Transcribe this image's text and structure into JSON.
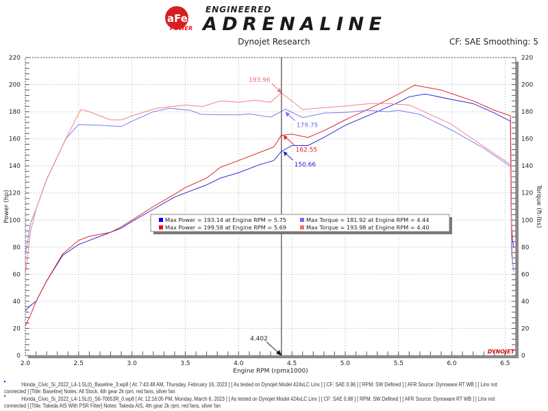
{
  "header": {
    "logo_text": "aFe POWER ENGINEERED ADRENALINE",
    "subtitle": "Dynojet Research",
    "cf_label": "CF: SAE Smoothing: 5"
  },
  "footer": {
    "run1_line1": "Honda_Civic_Si_2022_L4-1.5L(t)_Baseline_3.wp8 [ At: 7:43:48 AM, Thursday, February 16, 2023 ] [ As tested on Dynojet Model 424xLC Linx ] [ CF: SAE 0.96 ] [ RPM: SW Defined ] [ AFR Source: Dynoware RT WB ] [ Linx not",
    "run1_line2": "connected ] [Title: Baseline]  Notes: All Stock, 4th gear 2k rpm, red fans, silver fan",
    "run2_line1": "Honda_Civic_Si_2022_L4-1.5L(t)_S6-70053R_0.wp8 [ At: 12:16:05 PM, Monday, March 6, 2023 ] [ As tested on Dynojet Model 424xLC Linx ] [ CF: SAE 0.98 ] [ RPM: SW Defined ] [ AFR Source: Dynoware RT WB ] [ Linx not",
    "run2_line2": "connected ] [Title: Takeda AIS With PSR Filter]  Notes: Takeda AIS, 4th gear 2k rpm, red fans, silver fan",
    "run1_color": "#0000ff",
    "run2_color": "#ff0000"
  },
  "chart_data": {
    "type": "line",
    "xlabel": "Engine RPM (rpmx1000)",
    "ylabel": "Power (hp)",
    "y2label": "Torque (ft-lbs)",
    "xlim": [
      2.0,
      6.6
    ],
    "ylim": [
      0,
      220
    ],
    "y2lim": [
      0,
      220
    ],
    "xticks": [
      "2.0",
      "2.5",
      "3.0",
      "3.5",
      "4.0",
      "4.5",
      "5.0",
      "5.5",
      "6.0",
      "6.5"
    ],
    "yticks": [
      "0",
      "20",
      "40",
      "60",
      "80",
      "100",
      "120",
      "140",
      "160",
      "180",
      "200",
      "220"
    ],
    "grid": true,
    "watermark": "DYNOJET",
    "cursor": {
      "x": 4.402,
      "label": "4.402"
    },
    "series": [
      {
        "key": "blue_power",
        "color": "#2a2ad6",
        "axis": "left",
        "points": [
          [
            2.0,
            33
          ],
          [
            2.05,
            37
          ],
          [
            2.1,
            40
          ],
          [
            2.2,
            55
          ],
          [
            2.35,
            74
          ],
          [
            2.5,
            82
          ],
          [
            2.7,
            88
          ],
          [
            2.9,
            94
          ],
          [
            3.0,
            99
          ],
          [
            3.2,
            108
          ],
          [
            3.4,
            117
          ],
          [
            3.5,
            120
          ],
          [
            3.7,
            126
          ],
          [
            3.83,
            131
          ],
          [
            4.0,
            135
          ],
          [
            4.2,
            141
          ],
          [
            4.33,
            144
          ],
          [
            4.4,
            150.66
          ],
          [
            4.5,
            155
          ],
          [
            4.65,
            155
          ],
          [
            4.8,
            161
          ],
          [
            5.0,
            170
          ],
          [
            5.3,
            180
          ],
          [
            5.5,
            187
          ],
          [
            5.6,
            191
          ],
          [
            5.75,
            193.1
          ],
          [
            6.0,
            189
          ],
          [
            6.2,
            186
          ],
          [
            6.4,
            179
          ],
          [
            6.55,
            173
          ],
          [
            6.56,
            90
          ],
          [
            6.58,
            80
          ]
        ]
      },
      {
        "key": "red_power",
        "color": "#e02424",
        "axis": "left",
        "points": [
          [
            2.0,
            22
          ],
          [
            2.05,
            30
          ],
          [
            2.1,
            40
          ],
          [
            2.2,
            55
          ],
          [
            2.35,
            75
          ],
          [
            2.5,
            85
          ],
          [
            2.6,
            88
          ],
          [
            2.8,
            91
          ],
          [
            2.9,
            95
          ],
          [
            3.0,
            100
          ],
          [
            3.2,
            110
          ],
          [
            3.4,
            119
          ],
          [
            3.5,
            124
          ],
          [
            3.7,
            131
          ],
          [
            3.83,
            139
          ],
          [
            4.0,
            144
          ],
          [
            4.2,
            150
          ],
          [
            4.33,
            154
          ],
          [
            4.4,
            162.55
          ],
          [
            4.5,
            163.5
          ],
          [
            4.65,
            161
          ],
          [
            4.8,
            166
          ],
          [
            5.0,
            174
          ],
          [
            5.3,
            185
          ],
          [
            5.5,
            193
          ],
          [
            5.65,
            199.6
          ],
          [
            5.9,
            196
          ],
          [
            6.2,
            188
          ],
          [
            6.4,
            181
          ],
          [
            6.55,
            177
          ],
          [
            6.56,
            95
          ],
          [
            6.57,
            87
          ]
        ]
      },
      {
        "key": "blue_torque",
        "color": "#7b7bef",
        "axis": "right",
        "points": [
          [
            2.0,
            74
          ],
          [
            2.05,
            98
          ],
          [
            2.1,
            108
          ],
          [
            2.2,
            130
          ],
          [
            2.38,
            160
          ],
          [
            2.5,
            170.6
          ],
          [
            2.7,
            170
          ],
          [
            2.9,
            169
          ],
          [
            3.0,
            173
          ],
          [
            3.2,
            180
          ],
          [
            3.35,
            182.6
          ],
          [
            3.55,
            181
          ],
          [
            3.65,
            178
          ],
          [
            3.85,
            177.7
          ],
          [
            4.0,
            177.7
          ],
          [
            4.1,
            178.5
          ],
          [
            4.3,
            176
          ],
          [
            4.44,
            181.9
          ],
          [
            4.6,
            175.7
          ],
          [
            4.8,
            179
          ],
          [
            5.0,
            179.5
          ],
          [
            5.2,
            181
          ],
          [
            5.4,
            180
          ],
          [
            5.5,
            181
          ],
          [
            5.7,
            178
          ],
          [
            6.0,
            166.4
          ],
          [
            6.3,
            153
          ],
          [
            6.55,
            139.6
          ],
          [
            6.56,
            75
          ],
          [
            6.58,
            62
          ]
        ]
      },
      {
        "key": "red_torque",
        "color": "#f08282",
        "axis": "right",
        "points": [
          [
            2.0,
            60
          ],
          [
            2.05,
            92
          ],
          [
            2.1,
            108
          ],
          [
            2.2,
            130
          ],
          [
            2.38,
            160
          ],
          [
            2.52,
            181.6
          ],
          [
            2.6,
            180
          ],
          [
            2.8,
            174
          ],
          [
            2.9,
            174
          ],
          [
            3.0,
            177
          ],
          [
            3.23,
            182.6
          ],
          [
            3.51,
            185
          ],
          [
            3.66,
            183.8
          ],
          [
            3.83,
            188
          ],
          [
            4.0,
            187
          ],
          [
            4.15,
            188.5
          ],
          [
            4.3,
            187
          ],
          [
            4.4,
            194
          ],
          [
            4.6,
            181.6
          ],
          [
            4.8,
            183
          ],
          [
            4.97,
            184
          ],
          [
            5.23,
            186
          ],
          [
            5.4,
            186
          ],
          [
            5.6,
            185
          ],
          [
            5.99,
            171
          ],
          [
            6.25,
            157
          ],
          [
            6.55,
            141
          ],
          [
            6.56,
            90
          ],
          [
            6.57,
            70
          ]
        ]
      }
    ],
    "annotations": [
      {
        "series": "red_torque",
        "x": 4.4,
        "y": 193.96,
        "label": "193.96",
        "color": "#f06a6a"
      },
      {
        "series": "blue_torque",
        "x": 4.44,
        "y": 179.75,
        "label": "179.75",
        "color": "#6a6aef"
      },
      {
        "series": "red_power",
        "x": 4.42,
        "y": 162.55,
        "label": "162.55",
        "color": "#e02020"
      },
      {
        "series": "blue_power",
        "x": 4.42,
        "y": 150.66,
        "label": "150.66",
        "color": "#2020d0"
      }
    ],
    "legend": {
      "placement": "center",
      "entries": [
        {
          "label": "Max Power = 193.14 at Engine RPM = 5.75",
          "color": "#0000ff"
        },
        {
          "label": "Max Torque = 181.92 at Engine RPM = 4.44",
          "color": "#6c6cf5"
        },
        {
          "label": "Max Power = 199.58 at Engine RPM = 5.69",
          "color": "#ff0000"
        },
        {
          "label": "Max Torque = 193.98 at Engine RPM = 4.40",
          "color": "#f46c6c"
        }
      ]
    }
  }
}
